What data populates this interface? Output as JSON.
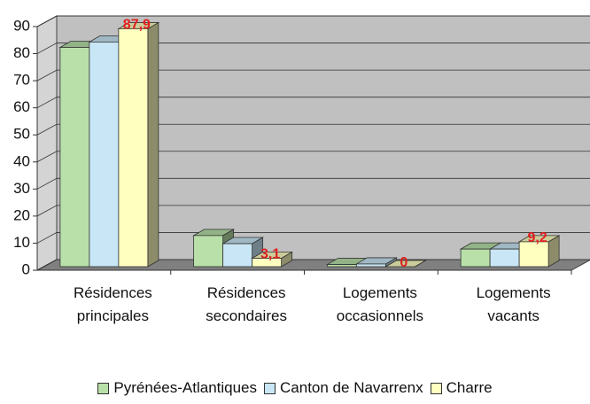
{
  "chart_data": {
    "type": "bar3d",
    "categories": [
      "Résidences principales",
      "Résidences secondaires",
      "Logements occasionnels",
      "Logements vacants"
    ],
    "series": [
      {
        "name": "Pyrénées-Atlantiques",
        "color": "#b8e0a8",
        "values": [
          81,
          11.5,
          0.8,
          6.5
        ]
      },
      {
        "name": "Canton de Navarrenx",
        "color": "#c8e6f5",
        "values": [
          83,
          8.5,
          1,
          6.5
        ]
      },
      {
        "name": "Charre",
        "color": "#ffffc0",
        "values": [
          87.9,
          3.1,
          0,
          9.2
        ],
        "value_labels": [
          "87,9",
          "3,1",
          "0",
          "9,2"
        ]
      }
    ],
    "ylim": [
      0,
      90
    ],
    "yticks": [
      0,
      10,
      20,
      30,
      40,
      50,
      60,
      70,
      80,
      90
    ],
    "grid": true,
    "legend": "bottom"
  }
}
